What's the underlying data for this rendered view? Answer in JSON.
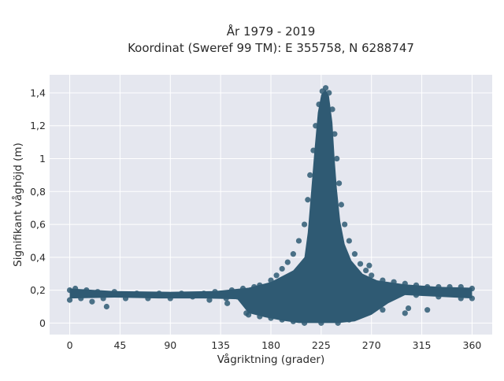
{
  "chart_data": {
    "type": "scatter",
    "title": "År 1979 - 2019",
    "subtitle": "Koordinat (Sweref 99 TM): E 355758, N 6288747",
    "xlabel": "Vågriktning (grader)",
    "ylabel": "Signifikant våghöjd (m)",
    "xlim": [
      -18,
      378
    ],
    "ylim": [
      -0.07,
      1.51
    ],
    "x_ticks": [
      0,
      45,
      90,
      135,
      180,
      225,
      270,
      315,
      360
    ],
    "x_tick_labels": [
      "0",
      "45",
      "90",
      "135",
      "180",
      "225",
      "270",
      "315",
      "360"
    ],
    "y_ticks": [
      0,
      0.2,
      0.4,
      0.6,
      0.8,
      1.0,
      1.2,
      1.4
    ],
    "y_tick_labels": [
      "0",
      "0,2",
      "0,4",
      "0,6",
      "0,8",
      "1",
      "1,2",
      "1,4"
    ],
    "grid": true,
    "point_color": "#2f5a73",
    "background_color": "#e5e7ef",
    "series": [
      {
        "values": [
          [
            0,
            0.2
          ],
          [
            0,
            0.14
          ],
          [
            5,
            0.21
          ],
          [
            10,
            0.15
          ],
          [
            15,
            0.2
          ],
          [
            20,
            0.13
          ],
          [
            25,
            0.19
          ],
          [
            30,
            0.15
          ],
          [
            40,
            0.19
          ],
          [
            50,
            0.15
          ],
          [
            60,
            0.18
          ],
          [
            70,
            0.15
          ],
          [
            80,
            0.18
          ],
          [
            90,
            0.15
          ],
          [
            100,
            0.18
          ],
          [
            110,
            0.16
          ],
          [
            120,
            0.18
          ],
          [
            125,
            0.14
          ],
          [
            130,
            0.19
          ],
          [
            140,
            0.15
          ],
          [
            145,
            0.2
          ],
          [
            150,
            0.16
          ],
          [
            155,
            0.21
          ],
          [
            160,
            0.17
          ],
          [
            165,
            0.22
          ],
          [
            170,
            0.23
          ],
          [
            175,
            0.2
          ],
          [
            180,
            0.26
          ],
          [
            185,
            0.29
          ],
          [
            190,
            0.33
          ],
          [
            195,
            0.37
          ],
          [
            200,
            0.42
          ],
          [
            205,
            0.5
          ],
          [
            210,
            0.6
          ],
          [
            213,
            0.75
          ],
          [
            215,
            0.9
          ],
          [
            218,
            1.05
          ],
          [
            220,
            1.2
          ],
          [
            223,
            1.33
          ],
          [
            226,
            1.41
          ],
          [
            229,
            1.43
          ],
          [
            232,
            1.4
          ],
          [
            235,
            1.3
          ],
          [
            237,
            1.15
          ],
          [
            239,
            1.0
          ],
          [
            241,
            0.85
          ],
          [
            243,
            0.72
          ],
          [
            246,
            0.6
          ],
          [
            250,
            0.5
          ],
          [
            255,
            0.42
          ],
          [
            260,
            0.36
          ],
          [
            265,
            0.32
          ],
          [
            270,
            0.29
          ],
          [
            280,
            0.26
          ],
          [
            290,
            0.25
          ],
          [
            300,
            0.24
          ],
          [
            310,
            0.23
          ],
          [
            320,
            0.22
          ],
          [
            330,
            0.22
          ],
          [
            340,
            0.22
          ],
          [
            350,
            0.22
          ],
          [
            360,
            0.21
          ],
          [
            360,
            0.15
          ],
          [
            350,
            0.15
          ],
          [
            330,
            0.16
          ],
          [
            310,
            0.17
          ],
          [
            290,
            0.19
          ],
          [
            270,
            0.1
          ],
          [
            260,
            0.06
          ],
          [
            250,
            0.02
          ],
          [
            240,
            0.0
          ],
          [
            225,
            0.0
          ],
          [
            210,
            0.0
          ],
          [
            200,
            0.01
          ],
          [
            190,
            0.02
          ],
          [
            180,
            0.03
          ],
          [
            170,
            0.04
          ],
          [
            160,
            0.05
          ],
          [
            158,
            0.06
          ],
          [
            320,
            0.08
          ],
          [
            300,
            0.06
          ],
          [
            280,
            0.08
          ],
          [
            215,
            0.02
          ],
          [
            230,
            0.05
          ],
          [
            260,
            0.12
          ],
          [
            185,
            0.08
          ],
          [
            175,
            0.1
          ],
          [
            205,
            0.2
          ],
          [
            245,
            0.22
          ],
          [
            235,
            0.3
          ],
          [
            220,
            0.45
          ],
          [
            228,
            0.8
          ],
          [
            232,
            1.1
          ],
          [
            224,
            1.0
          ],
          [
            236,
            0.7
          ],
          [
            212,
            0.35
          ],
          [
            250,
            0.3
          ],
          [
            33,
            0.1
          ],
          [
            141,
            0.12
          ],
          [
            268,
            0.35
          ],
          [
            303,
            0.09
          ],
          [
            195,
            0.14
          ],
          [
            165,
            0.08
          ]
        ]
      }
    ]
  }
}
